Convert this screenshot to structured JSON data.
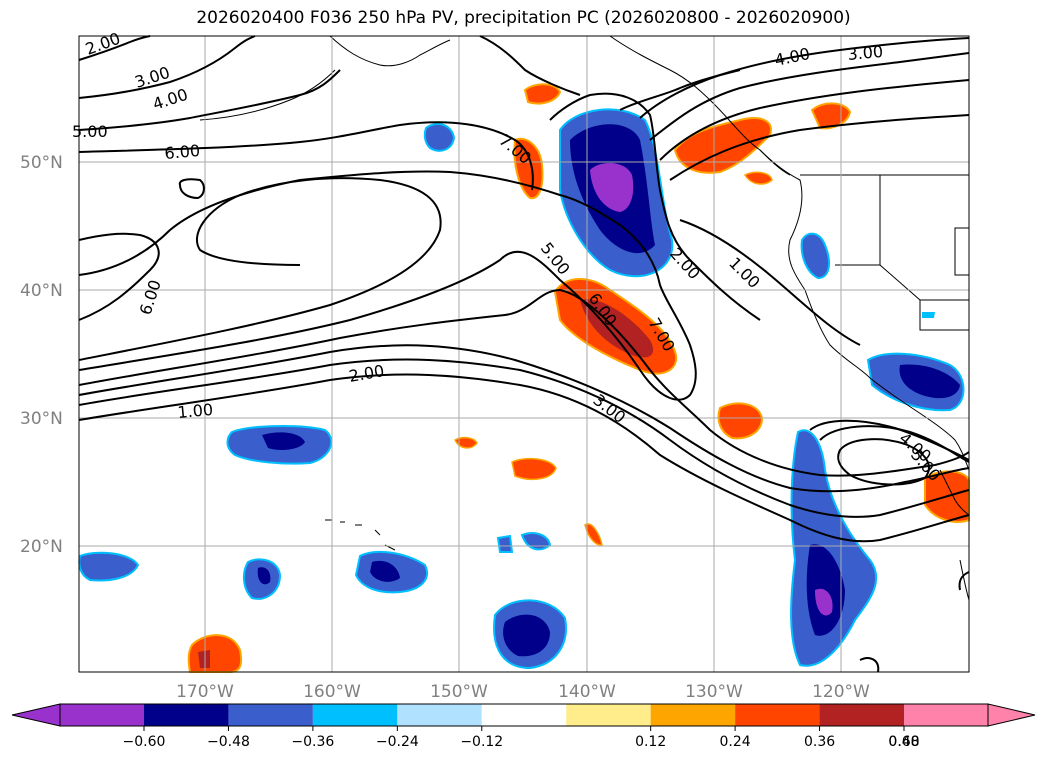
{
  "title": "2026020400 F036 250 hPa PV, precipitation PC (2026020800 - 2026020900)",
  "map": {
    "lat_ticks": [
      "50°N",
      "40°N",
      "30°N",
      "20°N"
    ],
    "lon_ticks": [
      "170°W",
      "160°W",
      "150°W",
      "140°W",
      "130°W",
      "120°W"
    ],
    "contour_labels": [
      "2.00",
      "3.00",
      "4.00",
      "5.00",
      "6.00",
      "6.00",
      "6.00",
      "7.00",
      "5.00",
      "6.00",
      "7.00",
      "2.00",
      "1.00",
      "2.00",
      "1.00",
      "3.00",
      "4.00",
      "3.00",
      "4.00",
      "5.00",
      "4.00",
      "3.00",
      "2.00"
    ],
    "colors": {
      "neg_060": "#9932cc",
      "neg_048": "#00008b",
      "neg_036": "#3a5fcd",
      "neg_024": "#00bfff",
      "neg_012": "#b0e2ff",
      "pos_012": "#ffec8b",
      "pos_024": "#ffa500",
      "pos_036": "#ff4500",
      "pos_048": "#b22222",
      "pos_060": "#ff82ab"
    }
  },
  "colorbar": {
    "ticks": [
      "−0.60",
      "−0.48",
      "−0.36",
      "−0.24",
      "−0.12",
      "0.12",
      "0.24",
      "0.36",
      "0.48",
      "0.60"
    ],
    "segment_colors": [
      "#9932cc",
      "#00008b",
      "#3a5fcd",
      "#00bfff",
      "#b0e2ff",
      "#ffffff",
      "#ffec8b",
      "#ffa500",
      "#ff4500",
      "#b22222",
      "#ff82ab"
    ]
  }
}
